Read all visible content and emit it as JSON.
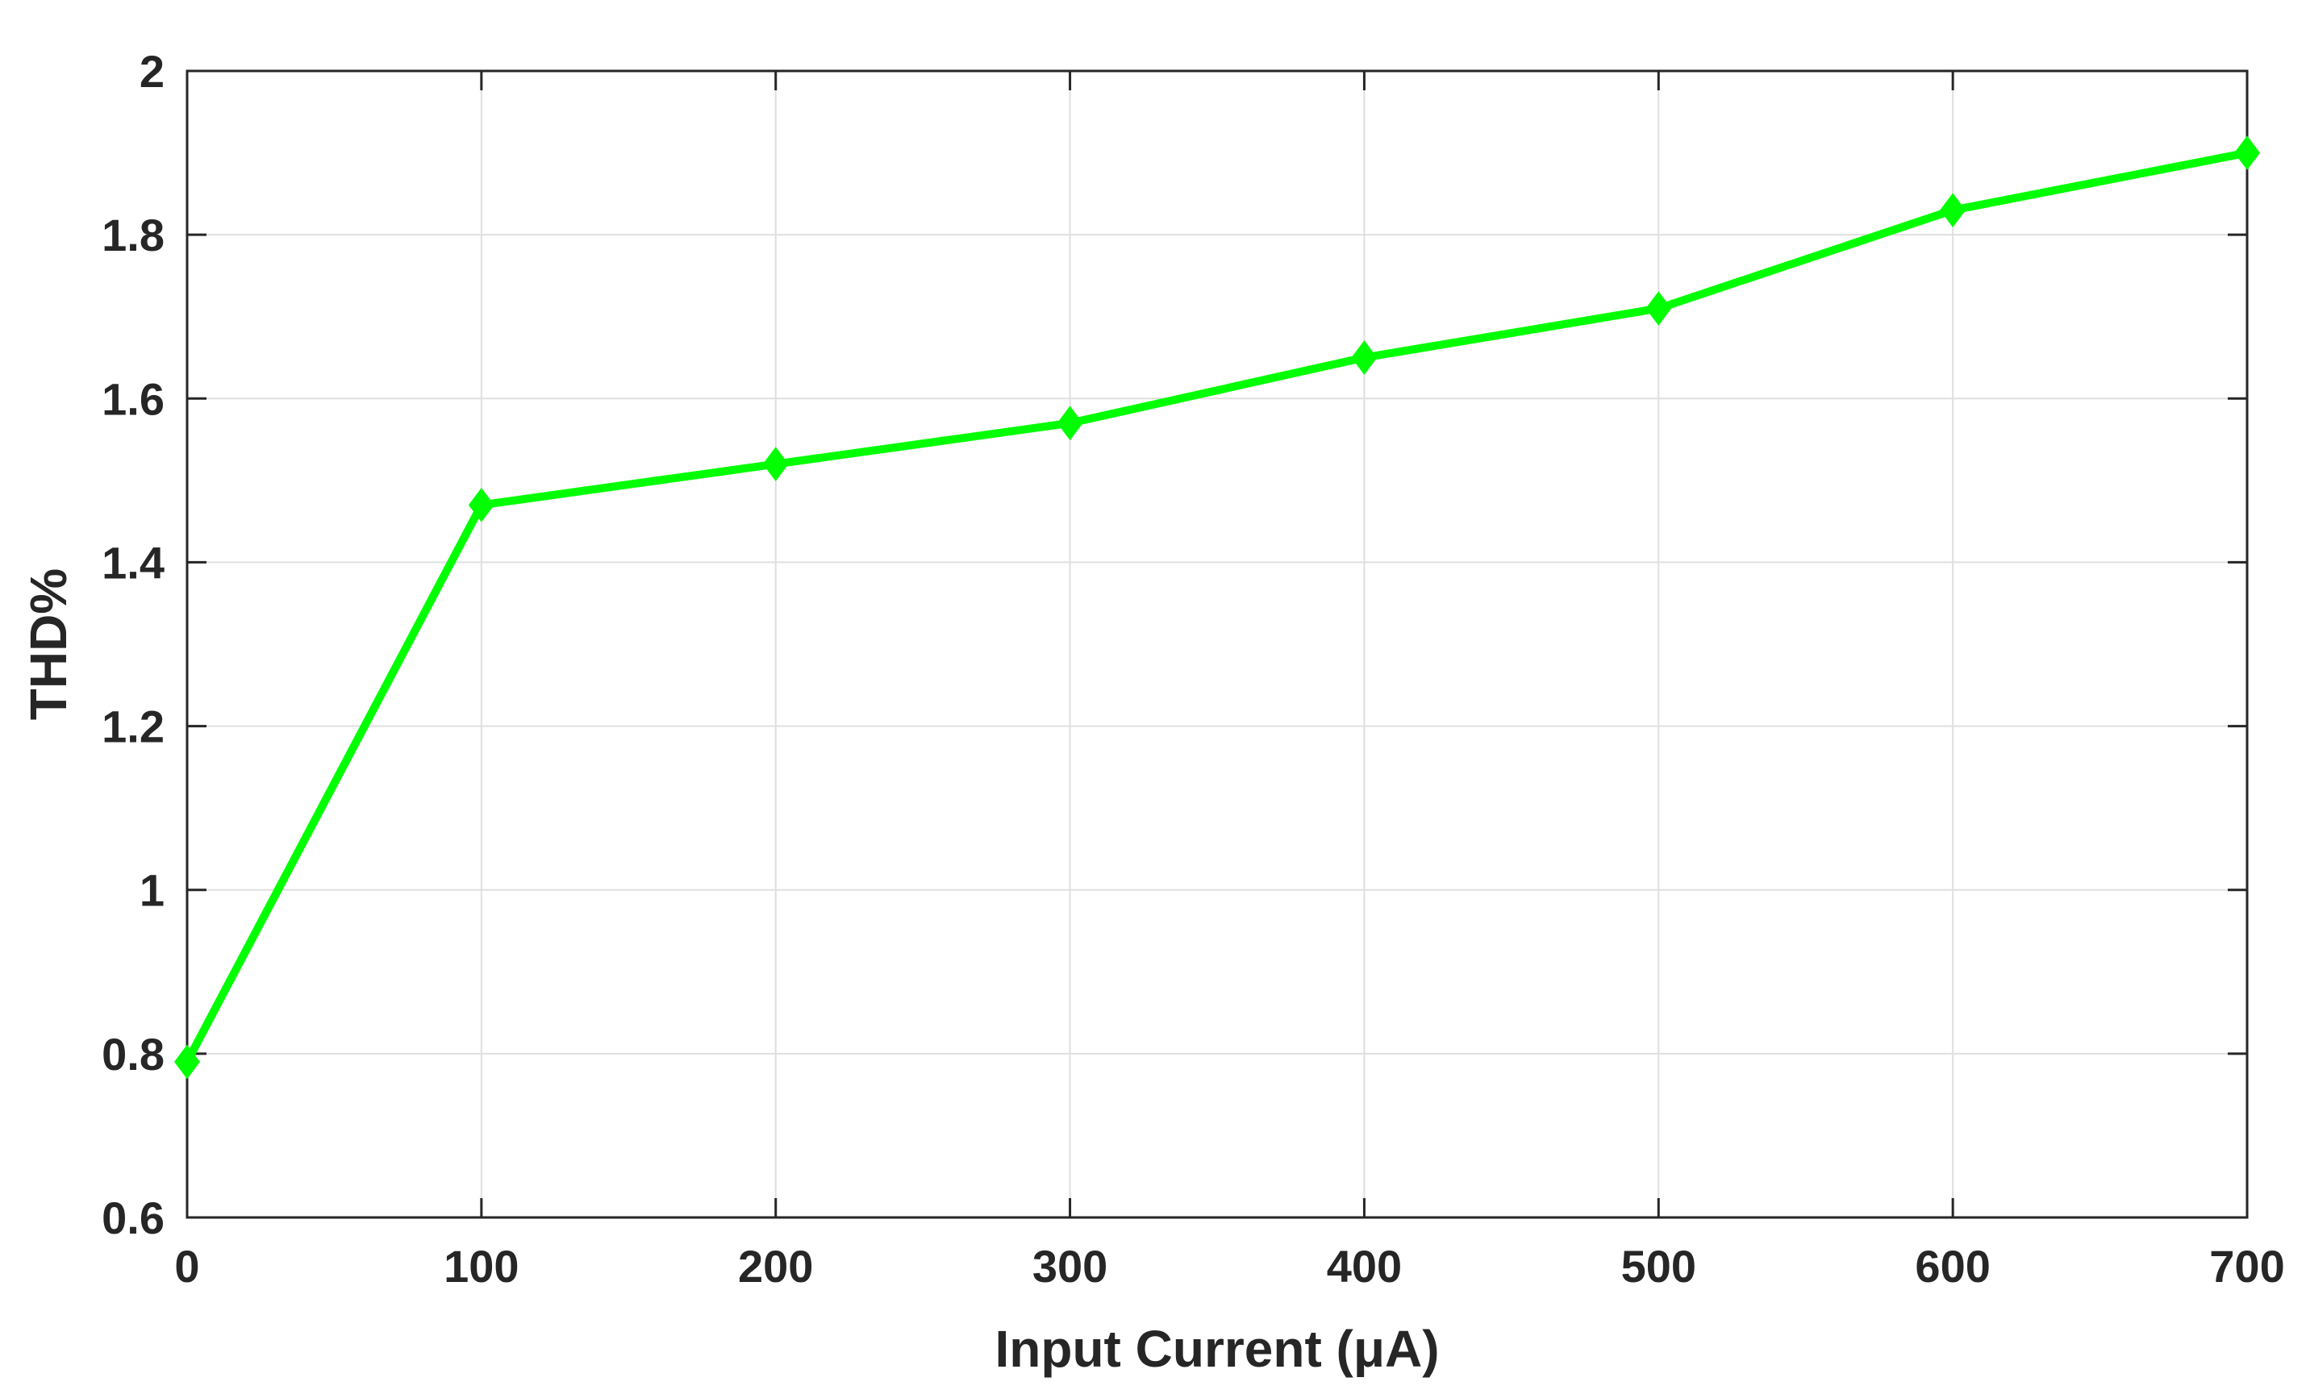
{
  "chart_data": {
    "type": "line",
    "title": "",
    "xlabel": "Input Current (μA)",
    "ylabel": "THD%",
    "xlim": [
      0,
      700
    ],
    "ylim": [
      0.6,
      2
    ],
    "xticks": [
      0,
      100,
      200,
      300,
      400,
      500,
      600,
      700
    ],
    "xtick_labels": [
      "0",
      "100",
      "200",
      "300",
      "400",
      "500",
      "600",
      "700"
    ],
    "yticks": [
      0.6,
      0.8,
      1,
      1.2,
      1.4,
      1.6,
      1.8,
      2
    ],
    "ytick_labels": [
      "0.6",
      "0.8",
      "1",
      "1.2",
      "1.4",
      "1.6",
      "1.8",
      "2"
    ],
    "grid": true,
    "series": [
      {
        "marker": "diamond",
        "color": "#00ff00",
        "x": [
          0,
          100,
          200,
          300,
          400,
          500,
          600,
          700
        ],
        "y": [
          0.79,
          1.47,
          1.52,
          1.57,
          1.65,
          1.71,
          1.83,
          1.9
        ]
      }
    ]
  }
}
